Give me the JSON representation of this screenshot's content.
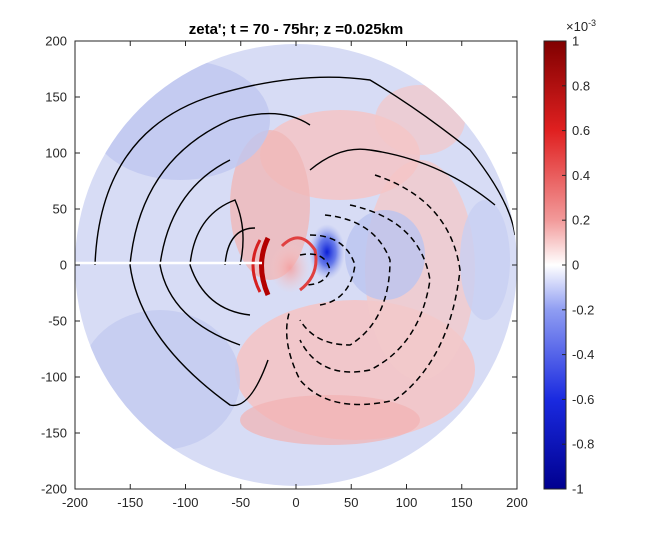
{
  "chart_data": {
    "type": "heatmap",
    "title": "zeta';  t = 70 - 75hr;  z =0.025km",
    "xlim": [
      -200,
      200
    ],
    "ylim": [
      -200,
      200
    ],
    "xticks": [
      -200,
      -150,
      -100,
      -50,
      0,
      50,
      100,
      150,
      200
    ],
    "yticks": [
      200,
      150,
      100,
      50,
      0,
      -50,
      -100,
      -150,
      -200
    ],
    "domain_radius": 200,
    "colorbar": {
      "limits": [
        -1,
        1
      ],
      "ticks": [
        1,
        0.8,
        0.6,
        0.4,
        0.2,
        0,
        -0.2,
        -0.4,
        -0.6,
        -0.8,
        -1
      ],
      "multiplier_label": "×10",
      "multiplier_exponent": "-3",
      "colormap": "blue-white-red",
      "colors": {
        "min": "#00008f",
        "neg_mid": "#3050e6",
        "zero": "#ffffff",
        "pos_mid": "#e63c3c",
        "max": "#800000"
      }
    },
    "features": {
      "positive_band_center": [
        -32,
        0
      ],
      "negative_core_center": [
        32,
        5
      ],
      "positive_spiral_region": "south-east quadrant",
      "contours_solid": "positive values, west half",
      "contours_dashed": "negative values, east half"
    }
  }
}
